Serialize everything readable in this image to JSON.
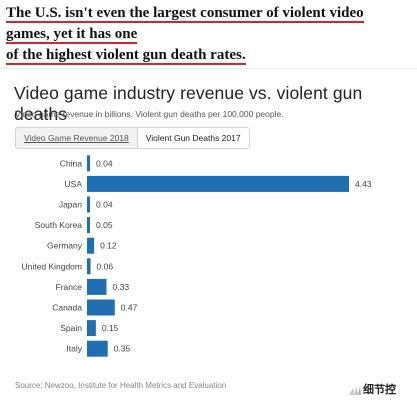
{
  "headline": {
    "line1": "The U.S. isn't even the largest consumer of violent video games, yet it has one",
    "line2": "of the highest violent gun death rates."
  },
  "tabs": {
    "revenue": "Video Game Revenue 2018",
    "deaths": "Violent Gun Deaths 2017"
  },
  "source": "Source: Newzoo, Institute for Health Metrics and Evaluation",
  "logo_text": "细节控",
  "colors": {
    "bar": "#1f6fb2",
    "accent_underline": "#d8232a"
  },
  "chart_data": {
    "type": "bar",
    "orientation": "horizontal",
    "title": "Video game industry revenue vs. violent gun deaths",
    "subtitle": "Video game revenue in billions. Violent gun deaths per 100,000 people.",
    "categories": [
      "China",
      "USA",
      "Japan",
      "South Korea",
      "Germany",
      "United Kingdom",
      "France",
      "Canada",
      "Spain",
      "Italy"
    ],
    "values": [
      0.04,
      4.43,
      0.04,
      0.05,
      0.12,
      0.06,
      0.33,
      0.47,
      0.15,
      0.35
    ],
    "value_labels": [
      "0.04",
      "4.43",
      "0.04",
      "0.05",
      "0.12",
      "0.06",
      "0.33",
      "0.47",
      "0.15",
      "0.35"
    ],
    "active_series": "Violent Gun Deaths 2017",
    "xlim": [
      0,
      4.43
    ],
    "grid": false,
    "legend": "none"
  }
}
